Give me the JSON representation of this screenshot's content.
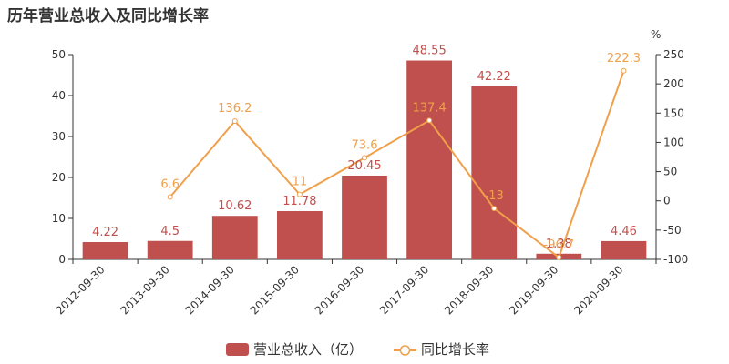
{
  "chart_data": {
    "type": "bar",
    "title": "历年营业总收入及同比增长率",
    "categories": [
      "2012-09-30",
      "2013-09-30",
      "2014-09-30",
      "2015-09-30",
      "2016-09-30",
      "2017-09-30",
      "2018-09-30",
      "2019-09-30",
      "2020-09-30"
    ],
    "series": [
      {
        "name": "营业总收入（亿）",
        "type": "bar",
        "axis": "left",
        "values": [
          4.22,
          4.5,
          10.62,
          11.78,
          20.45,
          48.55,
          42.22,
          1.38,
          4.46
        ],
        "labels": [
          "4.22",
          "4.5",
          "10.62",
          "11.78",
          "20.45",
          "48.55",
          "42.22",
          "1.38",
          "4.46"
        ]
      },
      {
        "name": "同比增长率",
        "type": "line",
        "axis": "right",
        "values": [
          null,
          6.6,
          136.2,
          11,
          73.6,
          137.4,
          -13,
          -96.7,
          222.3
        ],
        "labels": [
          "",
          "6.6",
          "136.2",
          "11",
          "73.6",
          "137.4",
          "-13",
          "-96.7",
          "222.3"
        ]
      }
    ],
    "y_left": {
      "min": 0,
      "max": 50,
      "ticks": [
        "0",
        "10",
        "20",
        "30",
        "40",
        "50"
      ]
    },
    "y_right": {
      "min": -100,
      "max": 250,
      "ticks": [
        "-100",
        "-50",
        "0",
        "50",
        "100",
        "150",
        "200",
        "250"
      ],
      "unit": "%"
    },
    "grid": false,
    "legend": "bottom-center",
    "colors": {
      "bar": "#c0504d",
      "line": "#f0a04b",
      "axis": "#333333"
    }
  }
}
